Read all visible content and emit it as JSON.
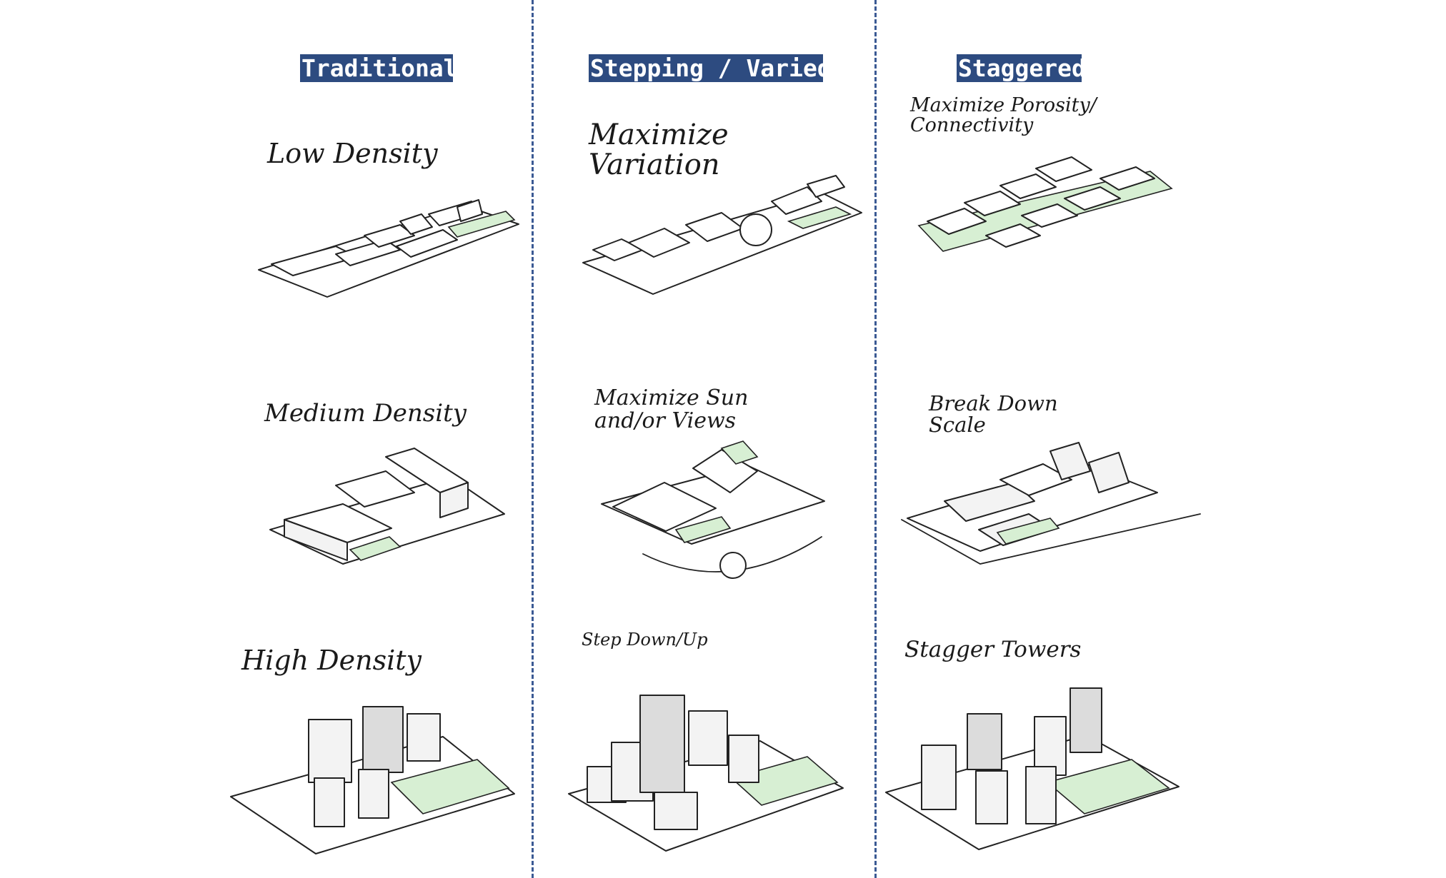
{
  "columns": [
    {
      "header": "Traditional",
      "cells": [
        {
          "label": "Low Density"
        },
        {
          "label": "Medium Density"
        },
        {
          "label": "High Density"
        }
      ]
    },
    {
      "header": "Stepping / Varied",
      "cells": [
        {
          "label": "Maximize\nVariation"
        },
        {
          "label": "Maximize Sun\nand/or Views"
        },
        {
          "label": "Step Down/Up"
        }
      ]
    },
    {
      "header": "Staggered",
      "cells": [
        {
          "label": "Maximize Porosity/\nConnectivity"
        },
        {
          "label": "Break Down\nScale"
        },
        {
          "label": "Stagger Towers"
        }
      ]
    }
  ],
  "colors": {
    "header_bg": "#2d4b80",
    "header_text": "#ffffff",
    "divider": "#3b5a94",
    "green_space": "#d7efd3",
    "sketch_line": "#222222"
  }
}
